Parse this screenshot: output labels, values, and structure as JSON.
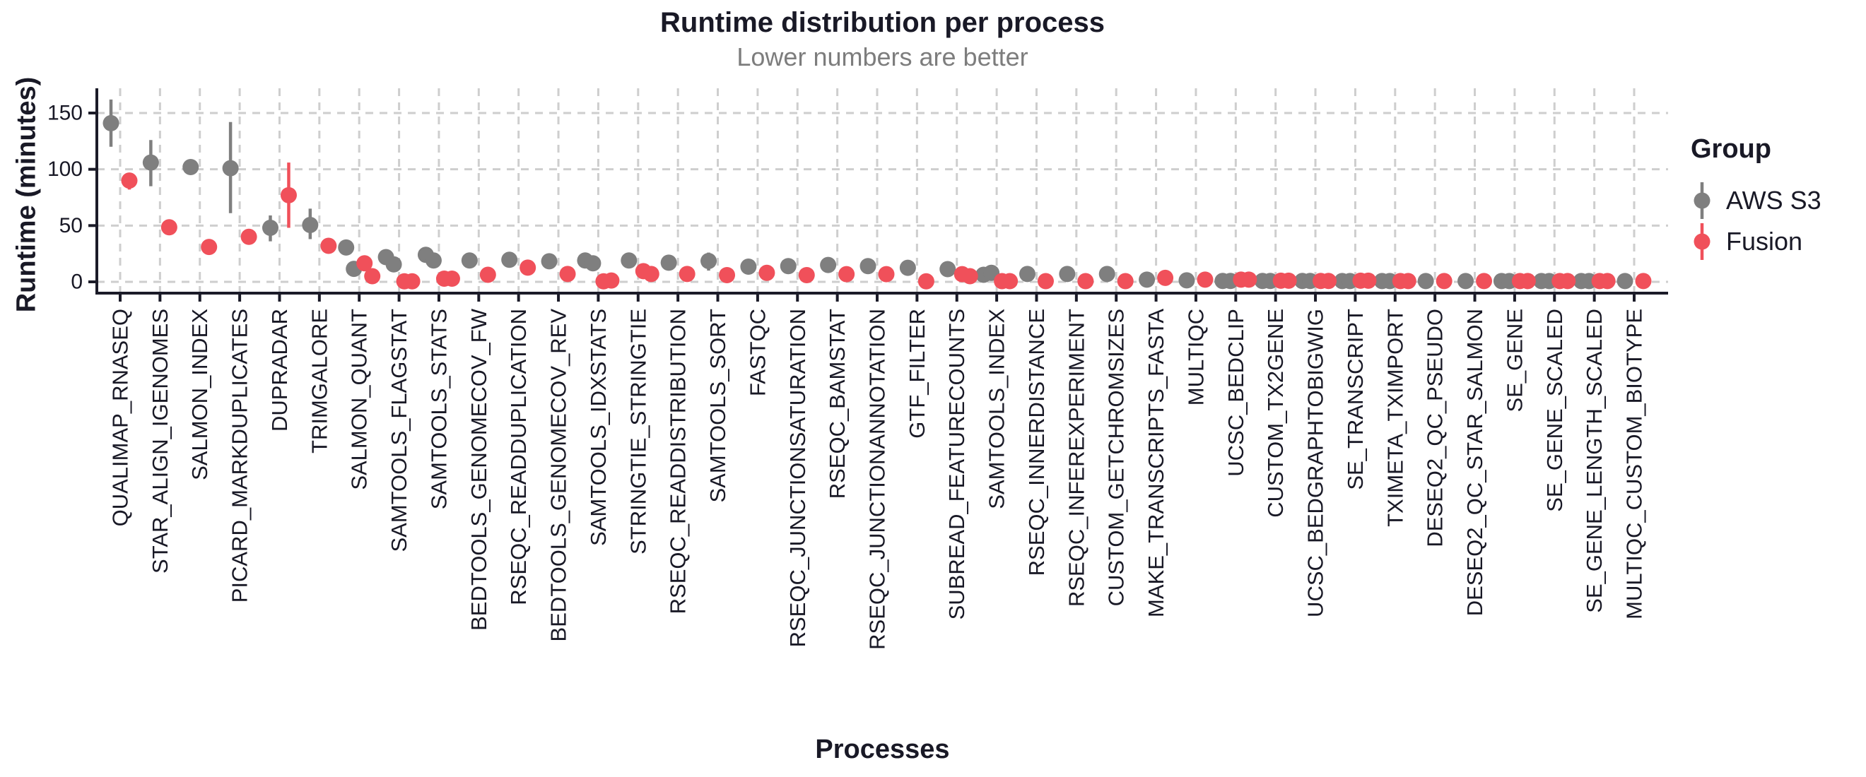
{
  "chart_data": {
    "type": "scatter",
    "title": "Runtime distribution per process",
    "subtitle": "Lower numbers are better",
    "xlabel": "Processes",
    "ylabel": "Runtime (minutes)",
    "y_ticks": [
      0,
      50,
      100,
      150
    ],
    "ylim": [
      -10,
      172
    ],
    "grid": "dashed",
    "legend": {
      "title": "Group",
      "position": "right",
      "entries": [
        {
          "label": "AWS S3",
          "color": "#7f7f7f"
        },
        {
          "label": "Fusion",
          "color": "#f0505a"
        }
      ]
    },
    "units": "minutes",
    "processes": [
      {
        "name": "QUALIMAP_RNASEQ",
        "aws": [
          141
        ],
        "aws_err": [
          120,
          162
        ],
        "fusion": [
          90
        ],
        "fusion_err": [
          82,
          96
        ]
      },
      {
        "name": "STAR_ALIGN_IGENOMES",
        "aws": [
          106
        ],
        "aws_err": [
          85,
          126
        ],
        "fusion": [
          48.5
        ]
      },
      {
        "name": "SALMON_INDEX",
        "aws": [
          102
        ],
        "fusion": [
          31
        ]
      },
      {
        "name": "PICARD_MARKDUPLICATES",
        "aws": [
          101
        ],
        "aws_err": [
          61,
          142
        ],
        "fusion": [
          40
        ]
      },
      {
        "name": "DUPRADAR",
        "aws": [
          48
        ],
        "aws_err": [
          36,
          59
        ],
        "fusion": [
          77
        ],
        "fusion_err": [
          48,
          106
        ]
      },
      {
        "name": "TRIMGALORE",
        "aws": [
          50.5
        ],
        "aws_err": [
          38,
          65
        ],
        "fusion": [
          32
        ]
      },
      {
        "name": "SALMON_QUANT",
        "aws": [
          30.5,
          11.5
        ],
        "fusion": [
          16.5,
          5
        ]
      },
      {
        "name": "SAMTOOLS_FLAGSTAT",
        "aws": [
          22,
          15.5
        ],
        "fusion": [
          0.5,
          0.5
        ]
      },
      {
        "name": "SAMTOOLS_STATS",
        "aws": [
          24,
          19
        ],
        "aws_err": [
          20,
          27
        ],
        "fusion": [
          2.8,
          2.8
        ]
      },
      {
        "name": "BEDTOOLS_GENOMECOV_FW",
        "aws": [
          19
        ],
        "fusion": [
          6.3
        ]
      },
      {
        "name": "RSEQC_READDUPLICATION",
        "aws": [
          19.6
        ],
        "fusion": [
          12.6
        ]
      },
      {
        "name": "BEDTOOLS_GENOMECOV_REV",
        "aws": [
          18.3
        ],
        "fusion": [
          7
        ]
      },
      {
        "name": "SAMTOOLS_IDXSTATS",
        "aws": [
          19,
          16.5
        ],
        "fusion": [
          0.5,
          1.2
        ]
      },
      {
        "name": "STRINGTIE_STRINGTIE",
        "aws": [
          19
        ],
        "fusion": [
          9.5,
          7
        ]
      },
      {
        "name": "RSEQC_READDISTRIBUTION",
        "aws": [
          17
        ],
        "fusion": [
          7
        ]
      },
      {
        "name": "SAMTOOLS_SORT",
        "aws": [
          18.5
        ],
        "aws_err": [
          10,
          26
        ],
        "fusion": [
          6
        ]
      },
      {
        "name": "FASTQC",
        "aws": [
          13.5
        ],
        "fusion": [
          8
        ]
      },
      {
        "name": "RSEQC_JUNCTIONSATURATION",
        "aws": [
          14
        ],
        "fusion": [
          6
        ]
      },
      {
        "name": "RSEQC_BAMSTAT",
        "aws": [
          15
        ],
        "fusion": [
          6.8
        ]
      },
      {
        "name": "RSEQC_JUNCTIONANNOTATION",
        "aws": [
          14
        ],
        "fusion": [
          6.8
        ]
      },
      {
        "name": "GTF_FILTER",
        "aws": [
          12.5
        ],
        "fusion": [
          0.5
        ]
      },
      {
        "name": "SUBREAD_FEATURECOUNTS",
        "aws": [
          11.3
        ],
        "fusion": [
          6.8,
          5
        ]
      },
      {
        "name": "SAMTOOLS_INDEX",
        "aws": [
          6.3,
          8
        ],
        "fusion": [
          0.6,
          0.6
        ]
      },
      {
        "name": "RSEQC_INNERDISTANCE",
        "aws": [
          7
        ],
        "fusion": [
          0.6
        ]
      },
      {
        "name": "RSEQC_INFEREXPERIMENT",
        "aws": [
          7
        ],
        "fusion": [
          0.6
        ]
      },
      {
        "name": "CUSTOM_GETCHROMSIZES",
        "aws": [
          7
        ],
        "fusion": [
          0.6
        ]
      },
      {
        "name": "MAKE_TRANSCRIPTS_FASTA",
        "aws": [
          2
        ],
        "fusion": [
          3.5
        ]
      },
      {
        "name": "MULTIQC",
        "aws": [
          1.3
        ],
        "fusion": [
          2
        ]
      },
      {
        "name": "UCSC_BEDCLIP",
        "aws": [
          0.8,
          0.8
        ],
        "fusion": [
          2,
          2
        ]
      },
      {
        "name": "CUSTOM_TX2GENE",
        "aws": [
          0.8,
          0.8
        ],
        "fusion": [
          1,
          1
        ]
      },
      {
        "name": "UCSC_BEDGRAPHTOBIGWIG",
        "aws": [
          0.8,
          0.8
        ],
        "fusion": [
          0.8,
          0.8
        ]
      },
      {
        "name": "SE_TRANSCRIPT",
        "aws": [
          0.7,
          0.7
        ],
        "fusion": [
          1,
          1
        ]
      },
      {
        "name": "TXIMETA_TXIMPORT",
        "aws": [
          0.7,
          0.7
        ],
        "fusion": [
          0.7,
          0.7
        ]
      },
      {
        "name": "DESEQ2_QC_PSEUDO",
        "aws": [
          0.7
        ],
        "fusion": [
          0.7
        ]
      },
      {
        "name": "DESEQ2_QC_STAR_SALMON",
        "aws": [
          0.7
        ],
        "fusion": [
          0.7
        ]
      },
      {
        "name": "SE_GENE",
        "aws": [
          0.7,
          0.7
        ],
        "fusion": [
          0.7,
          0.7
        ]
      },
      {
        "name": "SE_GENE_SCALED",
        "aws": [
          0.7,
          0.7
        ],
        "fusion": [
          0.7,
          0.7
        ]
      },
      {
        "name": "SE_GENE_LENGTH_SCALED",
        "aws": [
          0.7,
          0.7
        ],
        "fusion": [
          0.7,
          0.7
        ]
      },
      {
        "name": "MULTIQC_CUSTOM_BIOTYPE",
        "aws": [
          0.7
        ],
        "fusion": [
          0.7
        ]
      }
    ]
  },
  "style": {
    "aws_color": "#7f7f7f",
    "fusion_color": "#f0505a",
    "grid_color": "#cecece",
    "axis_color": "#1b1b28",
    "text_color": "#191926",
    "subtitle_color": "#7d7d7d",
    "background": "#ffffff"
  }
}
